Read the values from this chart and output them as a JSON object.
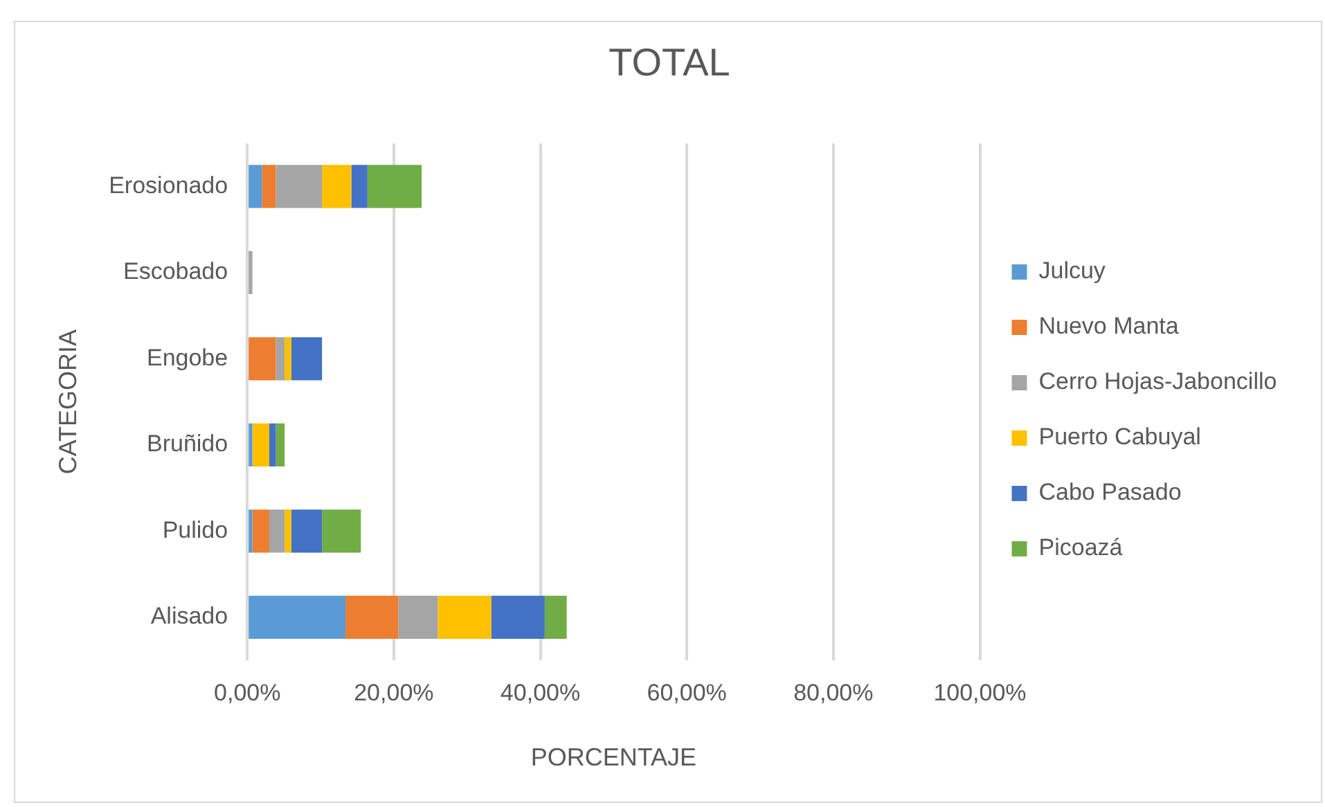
{
  "chart_data": {
    "type": "bar",
    "orientation": "horizontal",
    "stacked": true,
    "title": "TOTAL",
    "xlabel": "PORCENTAJE",
    "ylabel": "CATEGORIA",
    "categories": [
      "Erosionado",
      "Escobado",
      "Engobe",
      "Bruñido",
      "Pulido",
      "Alisado"
    ],
    "series": [
      {
        "name": "Julcuy",
        "color": "#5b9bd5",
        "values": [
          2.0,
          0,
          0,
          0.7,
          0.7,
          13.4
        ]
      },
      {
        "name": "Nuevo Manta",
        "color": "#ed7d31",
        "values": [
          1.9,
          0,
          3.9,
          0,
          2.3,
          7.2
        ]
      },
      {
        "name": "Cerro Hojas-Jaboncillo",
        "color": "#a5a5a5",
        "values": [
          6.3,
          0.7,
          1.2,
          0,
          2.1,
          5.4
        ]
      },
      {
        "name": "Puerto Cabuyal",
        "color": "#ffc000",
        "values": [
          4.0,
          0,
          0.9,
          2.3,
          0.9,
          7.3
        ]
      },
      {
        "name": "Cabo Pasado",
        "color": "#4472c4",
        "values": [
          2.2,
          0,
          4.2,
          0.9,
          4.2,
          7.3
        ]
      },
      {
        "name": "Picoazá",
        "color": "#70ad47",
        "values": [
          7.4,
          0,
          0,
          1.2,
          5.3,
          3.0
        ]
      }
    ],
    "xlim": [
      0,
      100
    ],
    "xticks": [
      {
        "value": 0,
        "label": "0,00%"
      },
      {
        "value": 20,
        "label": "20,00%"
      },
      {
        "value": 40,
        "label": "40,00%"
      },
      {
        "value": 60,
        "label": "60,00%"
      },
      {
        "value": 80,
        "label": "80,00%"
      },
      {
        "value": 100,
        "label": "100,00%"
      }
    ],
    "grid": "x",
    "legend": "right"
  }
}
